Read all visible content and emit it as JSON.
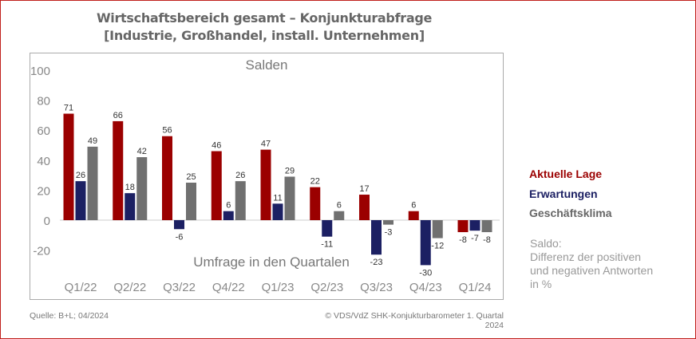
{
  "header": {
    "title_line1": "Wirtschaftsbereich gesamt – Konjunkturabfrage",
    "title_line2": "[Industrie, Großhandel, install. Unternehmen]"
  },
  "chart_data": {
    "type": "bar",
    "title": "Salden",
    "xlabel": "Umfrage in den Quartalen",
    "ylabel": "",
    "ylim": [
      -20,
      100
    ],
    "yticks": [
      "100",
      "80",
      "60",
      "40",
      "20",
      "0",
      "-20"
    ],
    "ytick_values": [
      100,
      80,
      60,
      40,
      20,
      0,
      -20
    ],
    "categories": [
      "Q1/22",
      "Q2/22",
      "Q3/22",
      "Q4/22",
      "Q1/23",
      "Q2/23",
      "Q3/23",
      "Q4/23",
      "Q1/24"
    ],
    "series": [
      {
        "name": "Aktuelle Lage",
        "color": "#9b0000",
        "values": [
          71,
          66,
          56,
          46,
          47,
          22,
          17,
          6,
          -8
        ]
      },
      {
        "name": "Erwartungen",
        "color": "#1c2063",
        "values": [
          26,
          18,
          -6,
          6,
          11,
          -11,
          -23,
          -30,
          -7
        ]
      },
      {
        "name": "Geschäftsklima",
        "color": "#707070",
        "values": [
          49,
          42,
          25,
          26,
          29,
          6,
          -3,
          -12,
          -8
        ]
      }
    ],
    "legend_position": "right",
    "grid": false
  },
  "legend": {
    "items": [
      {
        "label": "Aktuelle Lage",
        "color": "#9b0000"
      },
      {
        "label": "Erwartungen",
        "color": "#1c2063"
      },
      {
        "label": "Geschäftsklima",
        "color": "#666666"
      }
    ]
  },
  "note": {
    "line1": "Saldo:",
    "line2": "Differenz der positiven",
    "line3": "und negativen Antworten",
    "line4": "in %"
  },
  "footer": {
    "source": "Quelle: B+L; 04/2024",
    "copyright": "© VDS/VdZ SHK-Konjukturbarometer 1. Quartal 2024"
  }
}
